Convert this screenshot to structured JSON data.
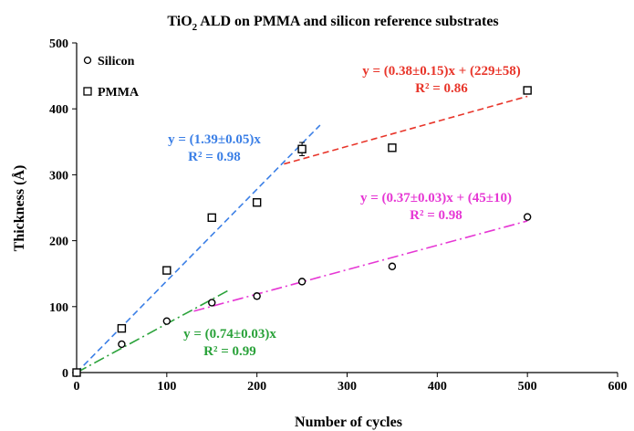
{
  "chart_data": {
    "type": "scatter",
    "title_main": "TiO",
    "title_sub": "2",
    "title_rest": " ALD on PMMA and silicon reference substrates",
    "xlabel": "Number of cycles",
    "ylabel": "Thickness (Å)",
    "xlim": [
      0,
      600
    ],
    "ylim": [
      0,
      500
    ],
    "xticks": [
      0,
      100,
      200,
      300,
      400,
      500,
      600
    ],
    "yticks": [
      0,
      100,
      200,
      300,
      400,
      500
    ],
    "grid": false,
    "legend_position": "top-left",
    "series": [
      {
        "name": "Silicon",
        "marker": "circle",
        "x": [
          0,
          50,
          100,
          150,
          200,
          250,
          350,
          500
        ],
        "y": [
          0,
          43,
          78,
          106,
          116,
          138,
          161,
          236
        ],
        "yerr": [
          0,
          2,
          2,
          3,
          4,
          2,
          3,
          2
        ]
      },
      {
        "name": "PMMA",
        "marker": "square",
        "x": [
          0,
          50,
          100,
          150,
          200,
          250,
          350,
          500
        ],
        "y": [
          0,
          67,
          155,
          235,
          258,
          339,
          341,
          428
        ],
        "yerr": [
          0,
          3,
          3,
          3,
          4,
          10,
          3,
          3
        ]
      }
    ],
    "fits": [
      {
        "color": "#3b7fe6",
        "dash": "dash",
        "x": [
          0,
          270
        ],
        "y": [
          0,
          375.3
        ],
        "eq": "y = (1.39±0.05)x",
        "r2": "R² = 0.98"
      },
      {
        "color": "#e8352a",
        "dash": "dash",
        "x": [
          230,
          500
        ],
        "y": [
          316.4,
          419
        ],
        "eq": "y = (0.38±0.15)x + (229±58)",
        "r2": "R² = 0.86"
      },
      {
        "color": "#e637d4",
        "dash": "dashdot",
        "x": [
          130,
          500
        ],
        "y": [
          93.1,
          230
        ],
        "eq": "y = (0.37±0.03)x + (45±10)",
        "r2": "R² = 0.98"
      },
      {
        "color": "#2aa23a",
        "dash": "dashdot",
        "x": [
          0,
          170
        ],
        "y": [
          0,
          125.8
        ],
        "eq": "y = (0.74±0.03)x",
        "r2": "R² = 0.99"
      }
    ]
  }
}
